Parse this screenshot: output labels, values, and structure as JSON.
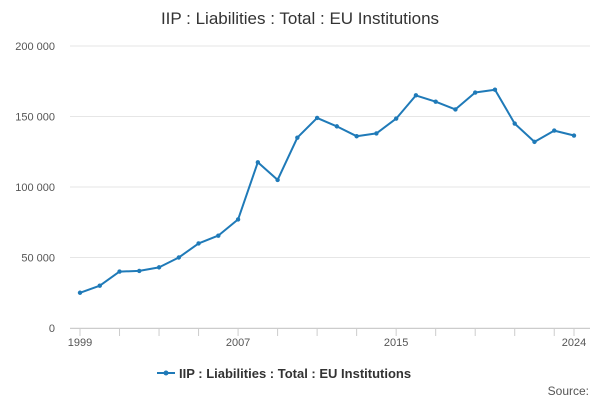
{
  "chart_data": {
    "type": "line",
    "title": "IIP : Liabilities : Total : EU Institutions",
    "xlabel": "",
    "ylabel": "",
    "x": [
      1999,
      2000,
      2001,
      2002,
      2003,
      2004,
      2005,
      2006,
      2007,
      2008,
      2009,
      2010,
      2011,
      2012,
      2013,
      2014,
      2015,
      2016,
      2017,
      2018,
      2019,
      2020,
      2021,
      2022,
      2023,
      2024
    ],
    "series": [
      {
        "name": "IIP : Liabilities : Total : EU Institutions",
        "color": "#1f7ab8",
        "values": [
          25000,
          30000,
          40000,
          40500,
          43000,
          50000,
          60000,
          65500,
          77000,
          117500,
          105000,
          135000,
          149000,
          143000,
          136000,
          138000,
          148500,
          165000,
          160500,
          155000,
          167000,
          169000,
          145000,
          132000,
          140000,
          136500
        ]
      }
    ],
    "xlim": [
      1999,
      2024
    ],
    "ylim": [
      0,
      200000
    ],
    "x_ticks": [
      1999,
      2007,
      2015,
      2024
    ],
    "y_ticks": [
      {
        "value": 0,
        "label": "0"
      },
      {
        "value": 50000,
        "label": "50 000"
      },
      {
        "value": 100000,
        "label": "100 000"
      },
      {
        "value": 150000,
        "label": "150 000"
      },
      {
        "value": 200000,
        "label": "200 000"
      }
    ],
    "grid": "horizontal",
    "legend_position": "bottom",
    "credit": "Source:"
  }
}
